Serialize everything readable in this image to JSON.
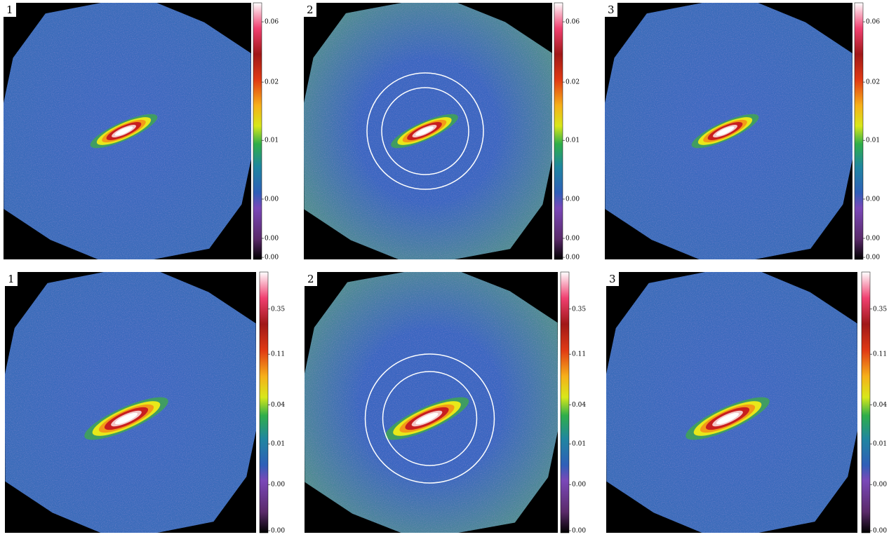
{
  "panels": [
    {
      "label": "1",
      "colorbar_ticks": [
        "0.06",
        "0.02",
        "0.01",
        "0.00",
        "0.00",
        "0.00"
      ]
    },
    {
      "label": "2",
      "colorbar_ticks": [
        "0.06",
        "0.02",
        "0.01",
        "0.00",
        "0.00",
        "0.00"
      ]
    },
    {
      "label": "3",
      "colorbar_ticks": [
        "0.06",
        "0.02",
        "0.01",
        "0.00",
        "0.00",
        "0.00"
      ]
    },
    {
      "label": "1",
      "colorbar_ticks": [
        "0.35",
        "0.11",
        "0.04",
        "0.01",
        "0.00",
        "0.00"
      ]
    },
    {
      "label": "2",
      "colorbar_ticks": [
        "0.35",
        "0.11",
        "0.04",
        "0.01",
        "0.00",
        "0.00"
      ]
    },
    {
      "label": "3",
      "colorbar_ticks": [
        "0.35",
        "0.11",
        "0.04",
        "0.01",
        "0.00",
        "0.00"
      ]
    }
  ]
}
